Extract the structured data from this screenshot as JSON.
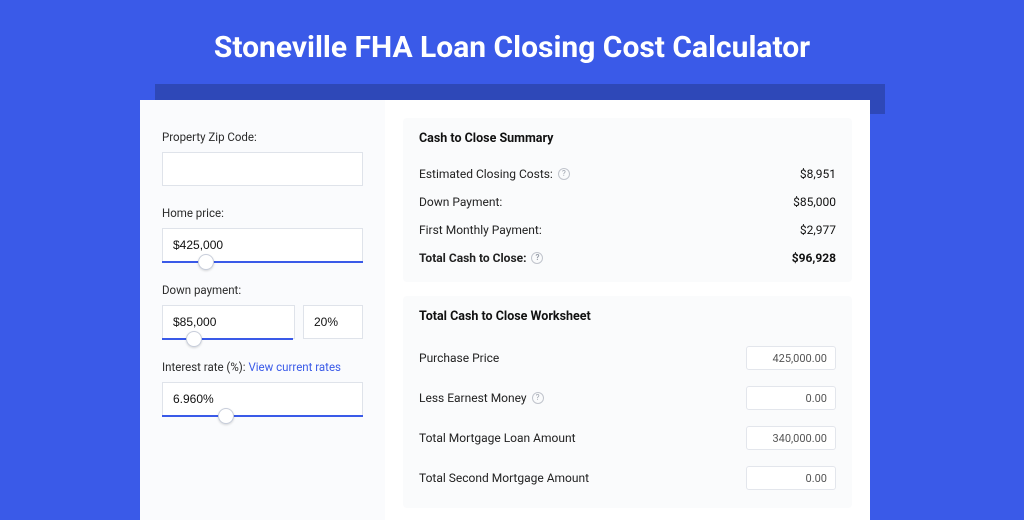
{
  "header": {
    "title": "Stoneville FHA Loan Closing Cost Calculator"
  },
  "colors": {
    "page_bg": "#3a5ae8",
    "shadow_strip": "#2e48b8",
    "panel_bg": "#ffffff",
    "left_col_bg": "#fafbfd",
    "card_bg": "#fafbfc",
    "input_border": "#dfe3ea",
    "link": "#3a5ae8",
    "slider_track": "#3a5ae8"
  },
  "form": {
    "zip": {
      "label": "Property Zip Code:",
      "value": ""
    },
    "home_price": {
      "label": "Home price:",
      "value": "$425,000",
      "slider_pct": 18
    },
    "down_payment": {
      "label": "Down payment:",
      "value": "$85,000",
      "pct": "20%",
      "slider_pct": 18
    },
    "interest_rate": {
      "label": "Interest rate (%):",
      "link_text": "View current rates",
      "value": "6.960%",
      "slider_pct": 28
    }
  },
  "summary": {
    "title": "Cash to Close Summary",
    "rows": [
      {
        "label": "Estimated Closing Costs:",
        "value": "$8,951",
        "help": true,
        "bold": false
      },
      {
        "label": "Down Payment:",
        "value": "$85,000",
        "help": false,
        "bold": false
      },
      {
        "label": "First Monthly Payment:",
        "value": "$2,977",
        "help": false,
        "bold": false
      },
      {
        "label": "Total Cash to Close:",
        "value": "$96,928",
        "help": true,
        "bold": true
      }
    ]
  },
  "worksheet": {
    "title": "Total Cash to Close Worksheet",
    "rows": [
      {
        "label": "Purchase Price",
        "value": "425,000.00",
        "help": false
      },
      {
        "label": "Less Earnest Money",
        "value": "0.00",
        "help": true
      },
      {
        "label": "Total Mortgage Loan Amount",
        "value": "340,000.00",
        "help": false
      },
      {
        "label": "Total Second Mortgage Amount",
        "value": "0.00",
        "help": false
      }
    ]
  }
}
